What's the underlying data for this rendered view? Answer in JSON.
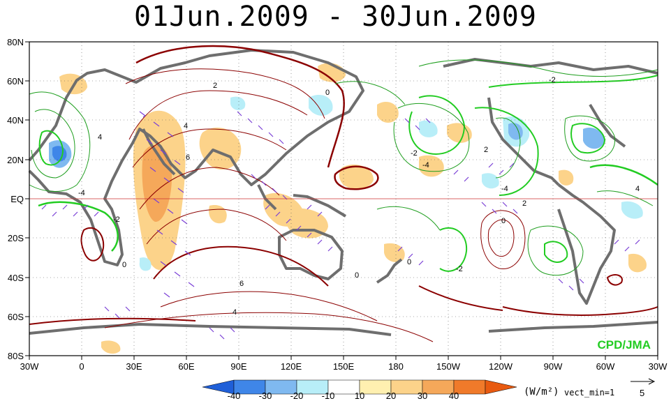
{
  "title": "01Jun.2009 - 30Jun.2009",
  "map": {
    "lat_labels": [
      "80N",
      "60N",
      "40N",
      "20N",
      "EQ",
      "20S",
      "40S",
      "60S",
      "80S"
    ],
    "lon_labels": [
      "30W",
      "0",
      "30E",
      "60E",
      "90E",
      "120E",
      "150E",
      "180",
      "150W",
      "120W",
      "90W",
      "60W",
      "30W"
    ],
    "contour_labels": [
      "2",
      "0",
      "-2",
      "4",
      "6",
      "-4",
      "-2",
      "0",
      "4",
      "-2",
      "2",
      "-2",
      "-4",
      "4",
      "-4",
      "0",
      "0",
      "6",
      "4",
      "0",
      "2"
    ],
    "credit": "CPD/JMA"
  },
  "colorbar": {
    "ticks": [
      "-40",
      "-30",
      "-20",
      "-10",
      "10",
      "20",
      "30",
      "40"
    ],
    "colors": [
      "#1f5fd8",
      "#3f86e8",
      "#7fb9f0",
      "#b8eef8",
      "#ffffff",
      "#fff0b0",
      "#fcd38a",
      "#f5a85a",
      "#f07a2a",
      "#e85a10"
    ],
    "unit": "(W/m²)",
    "vector_min": "vect_min=1",
    "reference_vector": "5"
  }
}
